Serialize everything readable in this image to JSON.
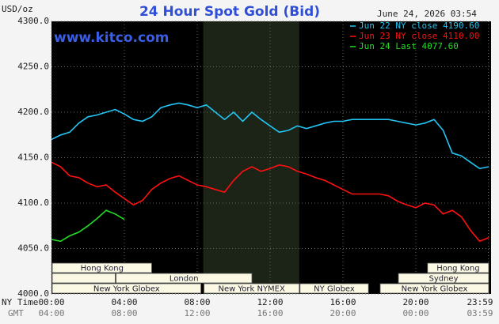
{
  "chart_data": {
    "type": "line",
    "title": "24 Hour Spot Gold (Bid)",
    "y_unit": "USD/oz",
    "watermark": "www.kitco.com",
    "timestamp": "June 24, 2026 03:54",
    "x_row_labels": [
      "NY Time",
      "GMT"
    ],
    "x": [
      0,
      0.5,
      1,
      1.5,
      2,
      2.5,
      3,
      3.5,
      4,
      4.5,
      5,
      5.5,
      6,
      6.5,
      7,
      7.5,
      8,
      8.5,
      9,
      9.5,
      10,
      10.5,
      11,
      11.5,
      12,
      12.5,
      13,
      13.5,
      14,
      14.5,
      15,
      15.5,
      16,
      16.5,
      17,
      17.5,
      18,
      18.5,
      19,
      19.5,
      20,
      20.5,
      21,
      21.5,
      22,
      22.5,
      23,
      23.5,
      24
    ],
    "series": [
      {
        "name": "Jun 22 NY close 4190.60",
        "color": "#22c4f2",
        "values": [
          4170,
          4175,
          4178,
          4188,
          4195,
          4197,
          4200,
          4203,
          4198,
          4192,
          4190,
          4195,
          4205,
          4208,
          4210,
          4208,
          4205,
          4208,
          4200,
          4192,
          4200,
          4190,
          4200,
          4192,
          4185,
          4178,
          4180,
          4185,
          4182,
          4185,
          4188,
          4190,
          4190,
          4192,
          4192,
          4192,
          4192,
          4192,
          4190,
          4188,
          4186,
          4188,
          4192,
          4180,
          4155,
          4152,
          4145,
          4138,
          4140
        ]
      },
      {
        "name": "Jun 23 NY close 4110.00",
        "color": "#ff1010",
        "values": [
          4145,
          4140,
          4130,
          4128,
          4122,
          4118,
          4120,
          4112,
          4105,
          4098,
          4103,
          4115,
          4122,
          4127,
          4130,
          4125,
          4120,
          4118,
          4115,
          4112,
          4125,
          4135,
          4140,
          4135,
          4138,
          4142,
          4140,
          4135,
          4132,
          4128,
          4125,
          4120,
          4115,
          4110,
          4110,
          4110,
          4110,
          4108,
          4102,
          4098,
          4095,
          4100,
          4098,
          4088,
          4092,
          4085,
          4070,
          4058,
          4062
        ]
      },
      {
        "name": "Jun 24 Last 4077.60",
        "color": "#22dd22",
        "values": [
          4060,
          4058,
          4064,
          4068,
          4075,
          4083,
          4092,
          4088,
          4082,
          null,
          null,
          null,
          null,
          null,
          null,
          null,
          null,
          null,
          null,
          null,
          null,
          null,
          null,
          null,
          null,
          null,
          null,
          null,
          null,
          null,
          null,
          null,
          null,
          null,
          null,
          null,
          null,
          null,
          null,
          null,
          null,
          null,
          null,
          null,
          null,
          null,
          null,
          null,
          null
        ]
      }
    ],
    "xlim": [
      0,
      24
    ],
    "xticks": [
      {
        "value": 0,
        "label": "00:00"
      },
      {
        "value": 4,
        "label": "04:00"
      },
      {
        "value": 8,
        "label": "08:00"
      },
      {
        "value": 12,
        "label": "12:00"
      },
      {
        "value": 16,
        "label": "16:00"
      },
      {
        "value": 20,
        "label": "20:00"
      },
      {
        "value": 23.983,
        "label": "23:59"
      }
    ],
    "gmt_labels": [
      "04:00",
      "08:00",
      "12:00",
      "16:00",
      "20:00",
      "00:00",
      "03:59"
    ],
    "ylim": [
      4000,
      4300
    ],
    "yticks": [
      {
        "value": 4000,
        "label": "4000.0"
      },
      {
        "value": 4050,
        "label": "4050.0"
      },
      {
        "value": 4100,
        "label": "4100.0"
      },
      {
        "value": 4150,
        "label": "4150.0"
      },
      {
        "value": 4200,
        "label": "4200.0"
      },
      {
        "value": 4250,
        "label": "4250.0"
      },
      {
        "value": 4300,
        "label": "4300.0"
      }
    ],
    "grid": true,
    "shaded_region": [
      8.33,
      13.6
    ],
    "session_rows": [
      [
        {
          "name": "Hong Kong",
          "start": 0,
          "end": 5.5
        },
        {
          "name": "Hong Kong",
          "start": 20.6,
          "end": 24
        }
      ],
      [
        {
          "name": null,
          "start": 0,
          "end": 3.5
        },
        {
          "name": "London",
          "start": 3.5,
          "end": 11
        },
        {
          "name": "Sydney",
          "start": 19,
          "end": 24
        }
      ],
      [
        {
          "name": "New York Globex",
          "start": 0,
          "end": 8.2
        },
        {
          "name": "New York NYMEX",
          "start": 8.33,
          "end": 13.6
        },
        {
          "name": "NY Globex",
          "start": 13.6,
          "end": 17.4
        },
        {
          "name": "New York Globex",
          "start": 18,
          "end": 24
        }
      ]
    ]
  }
}
